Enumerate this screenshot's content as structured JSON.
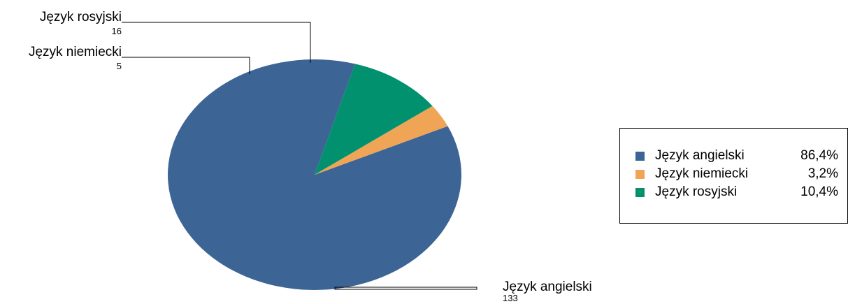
{
  "chart_data": {
    "type": "pie",
    "title": "",
    "slices": [
      {
        "label": "Język angielski",
        "value": 133,
        "percent": "86,4%",
        "color": "#3c6596"
      },
      {
        "label": "Język niemiecki",
        "value": 5,
        "percent": "3,2%",
        "color": "#f0a556"
      },
      {
        "label": "Język rosyjski",
        "value": 16,
        "percent": "10,4%",
        "color": "#02916f"
      }
    ],
    "callouts": [
      {
        "label": "Język rosyjski",
        "value": "16"
      },
      {
        "label": "Język niemiecki",
        "value": "5"
      },
      {
        "label": "Język angielski",
        "value": "133"
      }
    ],
    "legend": {
      "position": "right",
      "items": [
        {
          "label": "Język angielski",
          "percent": "86,4%",
          "color": "#3c6596"
        },
        {
          "label": "Język niemiecki",
          "percent": "3,2%",
          "color": "#f0a556"
        },
        {
          "label": "Język rosyjski",
          "percent": "10,4%",
          "color": "#02916f"
        }
      ]
    }
  }
}
